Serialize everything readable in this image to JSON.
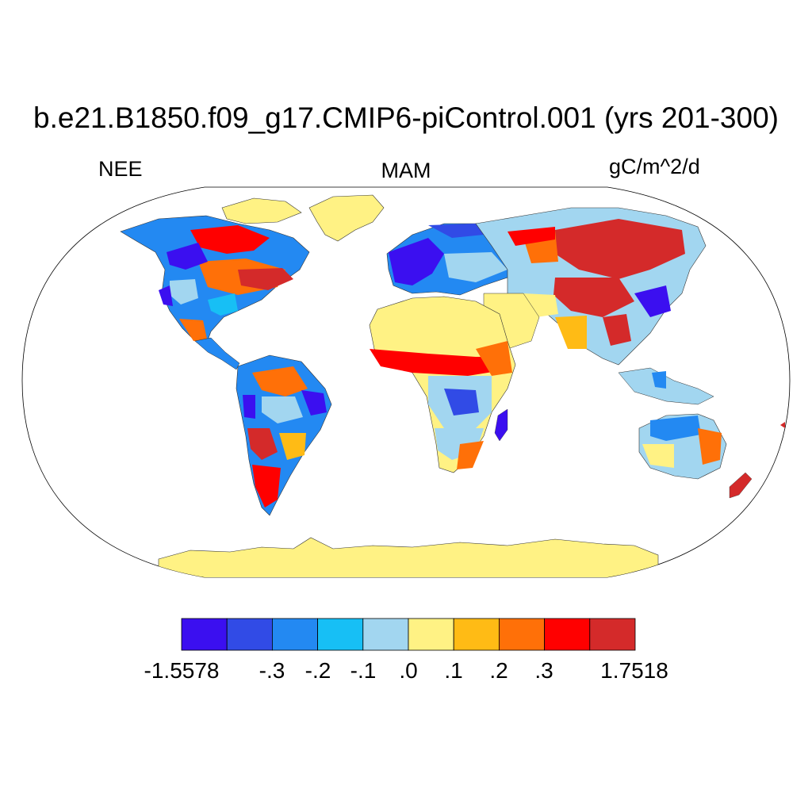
{
  "title": "b.e21.B1850.f09_g17.CMIP6-piControl.001 (yrs 201-300)",
  "left_label": "NEE",
  "center_label": "MAM",
  "right_label": "gC/m^2/d",
  "colorbar": {
    "colors": [
      "#3b0ff0",
      "#314be6",
      "#2389f2",
      "#17bff5",
      "#a2d6f0",
      "#fff284",
      "#ffbb15",
      "#ff7008",
      "#ff0000",
      "#d42a2a"
    ],
    "labels": [
      "-1.5578",
      "-.3",
      "-.2",
      "-.1",
      ".0",
      ".1",
      ".2",
      ".3",
      "1.7518"
    ]
  },
  "map": {
    "projection": "Robinson",
    "region": "Global",
    "background": "#ffffff",
    "landmask_color": "#fff284"
  }
}
